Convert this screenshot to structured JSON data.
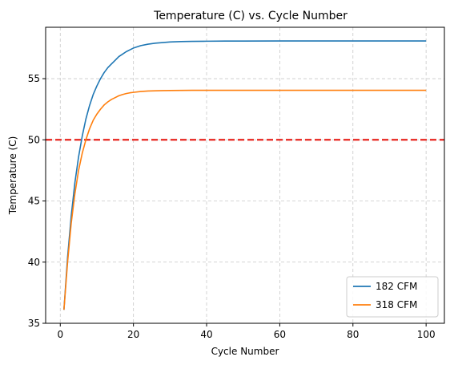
{
  "chart_data": {
    "type": "line",
    "title": "Temperature (C) vs. Cycle Number",
    "xlabel": "Cycle Number",
    "ylabel": "Temperature (C)",
    "xlim": [
      -4,
      105
    ],
    "ylim": [
      35,
      59.2
    ],
    "xticks": [
      0,
      20,
      40,
      60,
      80,
      100
    ],
    "yticks": [
      35,
      40,
      45,
      50,
      55
    ],
    "grid": true,
    "legend_position": "lower-right",
    "threshold": {
      "value": 50,
      "color": "#e8251f",
      "style": "dashed"
    },
    "series": [
      {
        "name": "182 CFM",
        "color": "#1f77b4",
        "x": [
          1,
          2,
          3,
          4,
          5,
          6,
          7,
          8,
          9,
          10,
          11,
          12,
          13,
          14,
          15,
          16,
          17,
          18,
          19,
          20,
          22,
          24,
          26,
          28,
          30,
          33,
          36,
          40,
          45,
          50,
          60,
          70,
          80,
          90,
          100
        ],
        "y": [
          36.1,
          40.4,
          43.8,
          46.5,
          48.6,
          50.3,
          51.7,
          52.8,
          53.7,
          54.4,
          55.0,
          55.5,
          55.9,
          56.2,
          56.5,
          56.8,
          57.0,
          57.2,
          57.35,
          57.5,
          57.7,
          57.82,
          57.9,
          57.95,
          58.0,
          58.03,
          58.05,
          58.06,
          58.07,
          58.07,
          58.08,
          58.08,
          58.08,
          58.08,
          58.08
        ]
      },
      {
        "name": "318 CFM",
        "color": "#ff7f0e",
        "x": [
          1,
          2,
          3,
          4,
          5,
          6,
          7,
          8,
          9,
          10,
          11,
          12,
          13,
          14,
          15,
          16,
          17,
          18,
          19,
          20,
          22,
          24,
          26,
          28,
          30,
          33,
          36,
          40,
          45,
          50,
          60,
          70,
          80,
          90,
          100
        ],
        "y": [
          36.1,
          40.0,
          43.2,
          45.6,
          47.5,
          48.9,
          50.0,
          50.9,
          51.6,
          52.1,
          52.5,
          52.85,
          53.1,
          53.3,
          53.45,
          53.6,
          53.7,
          53.78,
          53.84,
          53.88,
          53.95,
          53.99,
          54.01,
          54.02,
          54.03,
          54.04,
          54.05,
          54.05,
          54.05,
          54.05,
          54.05,
          54.05,
          54.05,
          54.05,
          54.05
        ]
      }
    ]
  }
}
